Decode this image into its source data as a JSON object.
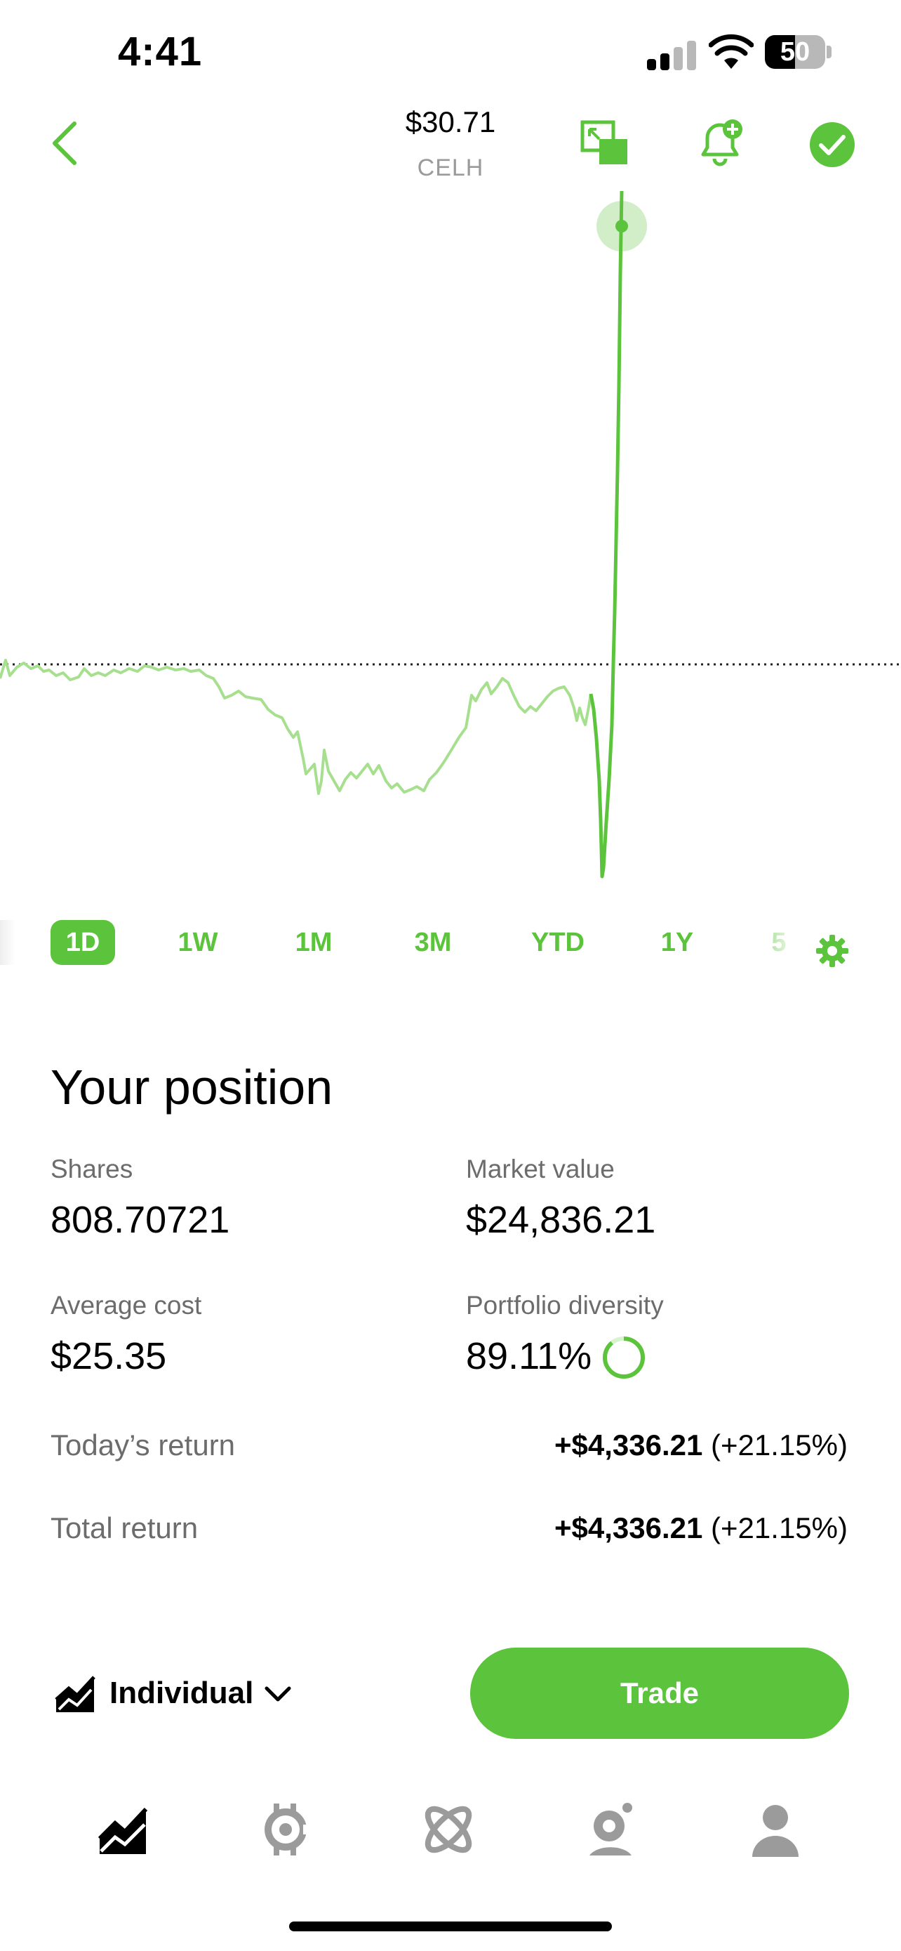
{
  "status_bar": {
    "time": "4:41",
    "battery": "50",
    "battery_level": 0.5
  },
  "header": {
    "price": "$30.71",
    "ticker": "CELH"
  },
  "colors": {
    "accent": "#5cc33c",
    "accent_light": "#a6df8e",
    "muted": "#6c6c6c",
    "icon_gray": "#9b9b9b"
  },
  "range_tabs": [
    {
      "label": "1D",
      "active": true
    },
    {
      "label": "1W",
      "active": false
    },
    {
      "label": "1M",
      "active": false
    },
    {
      "label": "3M",
      "active": false
    },
    {
      "label": "YTD",
      "active": false
    },
    {
      "label": "1Y",
      "active": false
    },
    {
      "label": "5",
      "active": false
    }
  ],
  "position": {
    "title": "Your position",
    "shares_label": "Shares",
    "shares": "808.70721",
    "market_value_label": "Market value",
    "market_value": "$24,836.21",
    "avg_cost_label": "Average cost",
    "avg_cost": "$25.35",
    "diversity_label": "Portfolio diversity",
    "diversity": "89.11%",
    "diversity_fraction": 0.8911,
    "todays_return_label": "Today’s return",
    "todays_return_amount": "+$4,336.21",
    "todays_return_pct": "(+21.15%)",
    "total_return_label": "Total return",
    "total_return_amount": "+$4,336.21",
    "total_return_pct": "(+21.15%)"
  },
  "account": {
    "label": "Individual"
  },
  "trade_button": {
    "label": "Trade"
  },
  "bottom_nav": [
    "investing-icon",
    "crypto-icon",
    "browse-icon",
    "cash-icon",
    "account-icon"
  ]
}
